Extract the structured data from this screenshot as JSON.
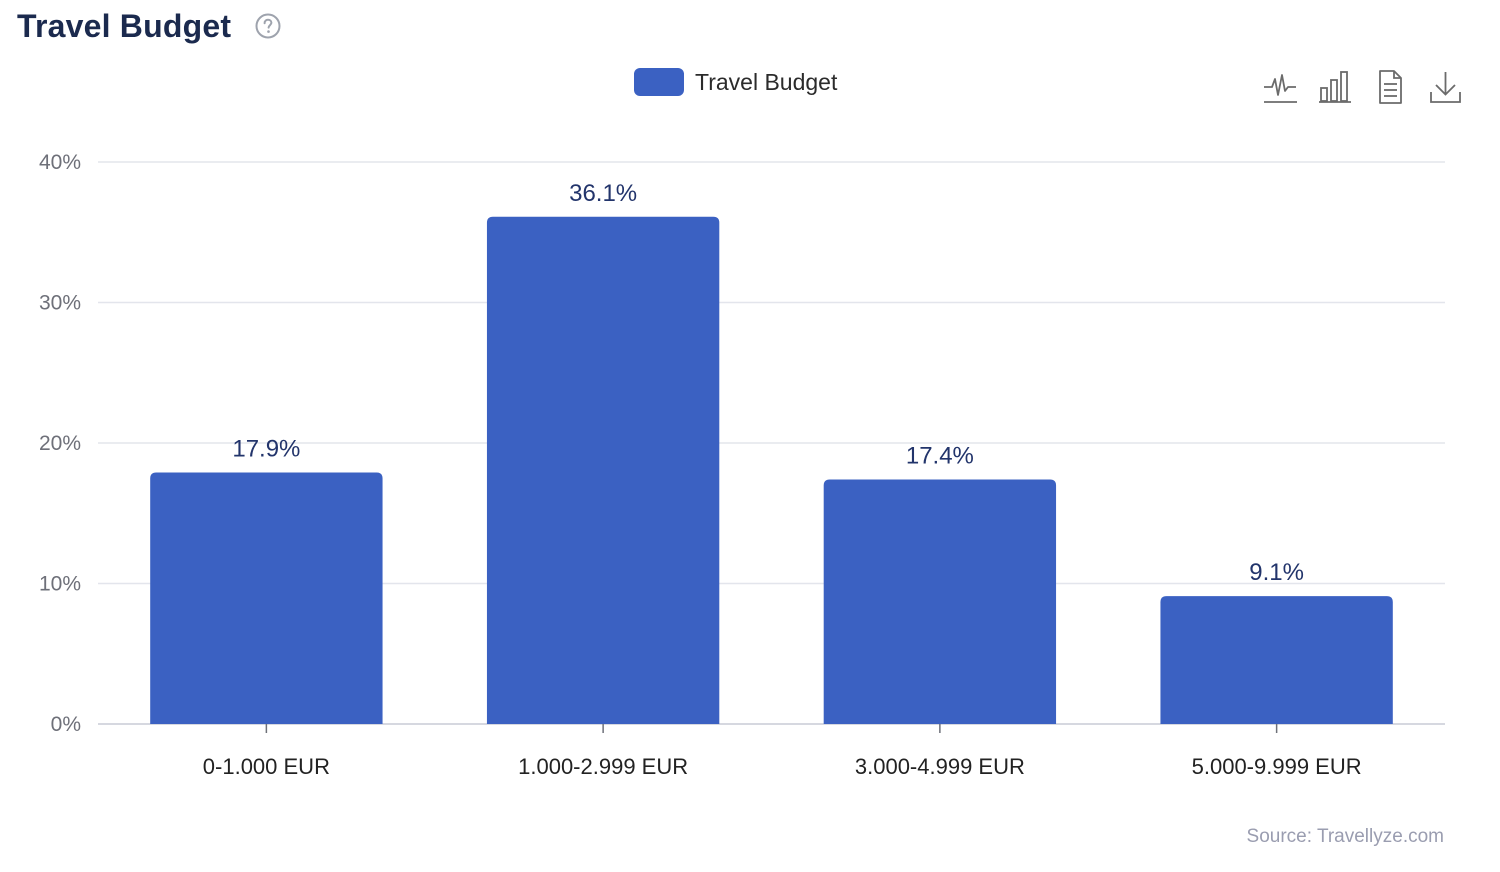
{
  "header": {
    "title": "Travel Budget",
    "help_icon": "question-circle-icon"
  },
  "legend": {
    "label": "Travel Budget"
  },
  "toolbar": {
    "icons": [
      "line-chart-icon",
      "bar-chart-icon",
      "data-view-icon",
      "download-icon"
    ]
  },
  "footer": {
    "source": "Source: Travellyze.com"
  },
  "colors": {
    "bar": "#3b61c2",
    "title": "#1b2a4e",
    "data_label": "#22346b",
    "grid": "#e3e5ec"
  },
  "chart_data": {
    "type": "bar",
    "title": "Travel Budget",
    "categories": [
      "0-1.000 EUR",
      "1.000-2.999 EUR",
      "3.000-4.999 EUR",
      "5.000-9.999 EUR"
    ],
    "series": [
      {
        "name": "Travel Budget",
        "values": [
          17.9,
          36.1,
          17.4,
          9.1
        ]
      }
    ],
    "data_labels": [
      "17.9%",
      "36.1%",
      "17.4%",
      "9.1%"
    ],
    "y_ticks": [
      "0%",
      "10%",
      "20%",
      "30%",
      "40%"
    ],
    "ylim": [
      0,
      40
    ],
    "grid": true,
    "legend_position": "top-center"
  }
}
